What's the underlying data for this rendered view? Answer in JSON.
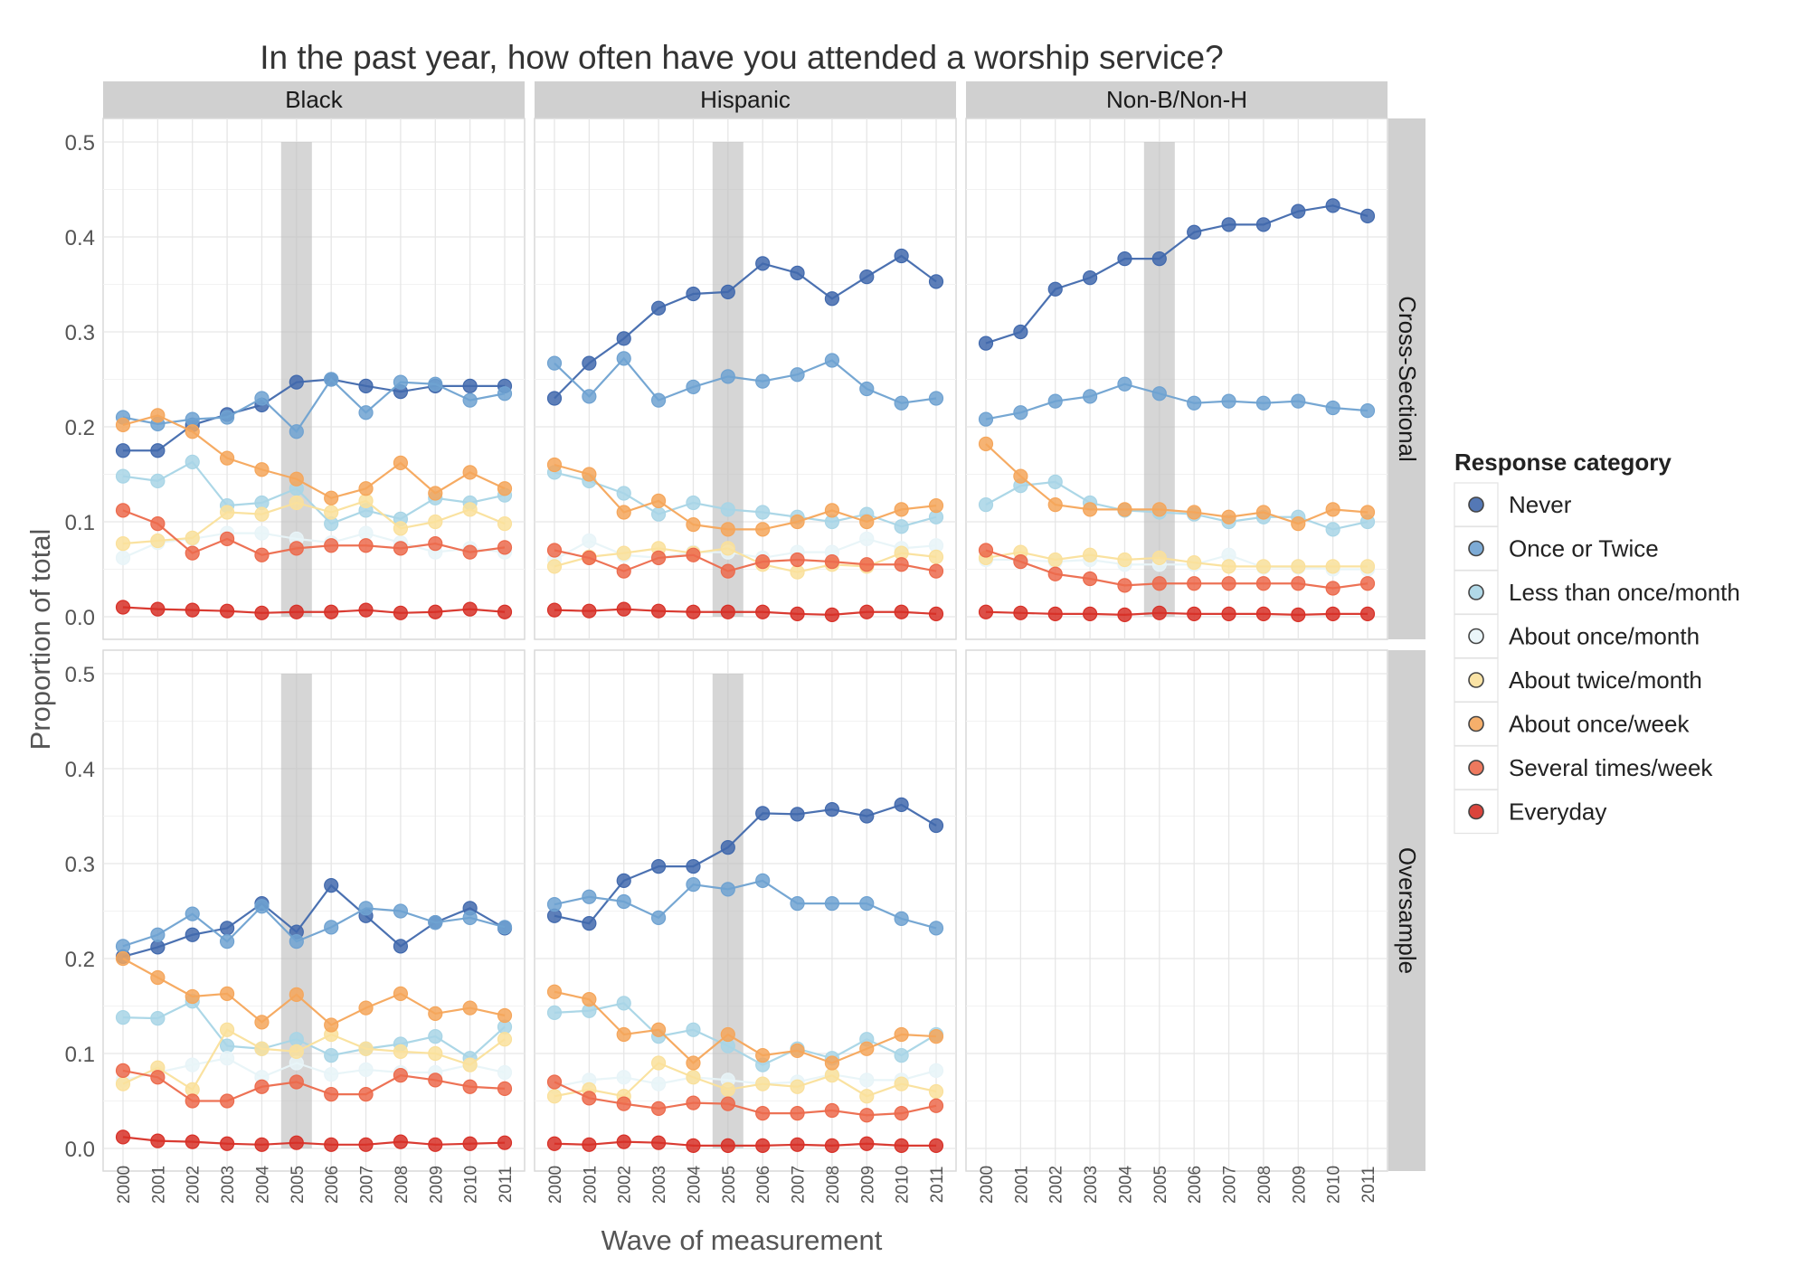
{
  "chart_data": {
    "type": "line",
    "title": "In the past year, how often have you attended a worship service?",
    "xlabel": "Wave of measurement",
    "ylabel": "Proportion of total",
    "ylim": [
      0,
      0.5
    ],
    "yticks": [
      "0.0",
      "0.1",
      "0.2",
      "0.3",
      "0.4",
      "0.5"
    ],
    "x": [
      "2000",
      "2001",
      "2002",
      "2003",
      "2004",
      "2005",
      "2006",
      "2007",
      "2008",
      "2009",
      "2010",
      "2011"
    ],
    "highlight_x": "2005",
    "grid": true,
    "columns": [
      "Black",
      "Hispanic",
      "Non-B/Non-H"
    ],
    "rows": [
      "Cross-Sectional",
      "Oversample"
    ],
    "legend": {
      "title": "Response category",
      "placement": "right",
      "items": [
        {
          "name": "Never",
          "color": "#4169ad"
        },
        {
          "name": "Once or Twice",
          "color": "#6fa2d1"
        },
        {
          "name": "Less than once/month",
          "color": "#a8d5e6"
        },
        {
          "name": "About once/month",
          "color": "#e8f4f8"
        },
        {
          "name": "About twice/month",
          "color": "#fae09b"
        },
        {
          "name": "About once/week",
          "color": "#f5a65b"
        },
        {
          "name": "Several times/week",
          "color": "#ec6a4c"
        },
        {
          "name": "Everyday",
          "color": "#d73027"
        }
      ]
    },
    "panels": [
      {
        "column": "Black",
        "row": "Cross-Sectional",
        "series": [
          {
            "name": "Never",
            "values": [
              0.175,
              0.175,
              0.202,
              0.213,
              0.223,
              0.247,
              0.25,
              0.243,
              0.237,
              0.243,
              0.243,
              0.243
            ]
          },
          {
            "name": "Once or Twice",
            "values": [
              0.21,
              0.203,
              0.208,
              0.21,
              0.23,
              0.195,
              0.25,
              0.215,
              0.247,
              0.245,
              0.228,
              0.235
            ]
          },
          {
            "name": "Less than once/month",
            "values": [
              0.148,
              0.143,
              0.163,
              0.117,
              0.12,
              0.135,
              0.098,
              0.112,
              0.103,
              0.125,
              0.12,
              0.128
            ]
          },
          {
            "name": "About once/month",
            "values": [
              0.062,
              0.078,
              0.082,
              0.088,
              0.088,
              0.082,
              0.078,
              0.088,
              0.078,
              0.068,
              0.072,
              0.068
            ]
          },
          {
            "name": "About twice/month",
            "values": [
              0.077,
              0.08,
              0.083,
              0.11,
              0.108,
              0.12,
              0.11,
              0.122,
              0.093,
              0.1,
              0.113,
              0.098
            ]
          },
          {
            "name": "About once/week",
            "values": [
              0.202,
              0.212,
              0.195,
              0.167,
              0.155,
              0.145,
              0.125,
              0.135,
              0.162,
              0.13,
              0.152,
              0.135
            ]
          },
          {
            "name": "Several times/week",
            "values": [
              0.112,
              0.098,
              0.067,
              0.082,
              0.065,
              0.072,
              0.075,
              0.075,
              0.072,
              0.077,
              0.068,
              0.073
            ]
          },
          {
            "name": "Everyday",
            "values": [
              0.01,
              0.008,
              0.007,
              0.006,
              0.004,
              0.005,
              0.005,
              0.007,
              0.004,
              0.005,
              0.008,
              0.005
            ]
          }
        ]
      },
      {
        "column": "Hispanic",
        "row": "Cross-Sectional",
        "series": [
          {
            "name": "Never",
            "values": [
              0.23,
              0.267,
              0.293,
              0.325,
              0.34,
              0.342,
              0.372,
              0.362,
              0.335,
              0.358,
              0.38,
              0.353
            ]
          },
          {
            "name": "Once or Twice",
            "values": [
              0.267,
              0.232,
              0.272,
              0.228,
              0.242,
              0.253,
              0.248,
              0.255,
              0.27,
              0.24,
              0.225,
              0.23
            ]
          },
          {
            "name": "Less than once/month",
            "values": [
              0.152,
              0.143,
              0.13,
              0.108,
              0.12,
              0.113,
              0.11,
              0.105,
              0.1,
              0.108,
              0.095,
              0.105
            ]
          },
          {
            "name": "About once/month",
            "values": [
              0.06,
              0.08,
              0.065,
              0.062,
              0.068,
              0.068,
              0.062,
              0.068,
              0.068,
              0.082,
              0.072,
              0.075
            ]
          },
          {
            "name": "About twice/month",
            "values": [
              0.053,
              0.063,
              0.067,
              0.072,
              0.067,
              0.072,
              0.055,
              0.047,
              0.055,
              0.053,
              0.067,
              0.063
            ]
          },
          {
            "name": "About once/week",
            "values": [
              0.16,
              0.15,
              0.11,
              0.122,
              0.097,
              0.092,
              0.092,
              0.1,
              0.112,
              0.1,
              0.113,
              0.117
            ]
          },
          {
            "name": "Several times/week",
            "values": [
              0.07,
              0.062,
              0.048,
              0.062,
              0.065,
              0.048,
              0.058,
              0.06,
              0.058,
              0.055,
              0.055,
              0.048
            ]
          },
          {
            "name": "Everyday",
            "values": [
              0.007,
              0.006,
              0.008,
              0.006,
              0.005,
              0.005,
              0.005,
              0.003,
              0.002,
              0.005,
              0.005,
              0.003
            ]
          }
        ]
      },
      {
        "column": "Non-B/Non-H",
        "row": "Cross-Sectional",
        "series": [
          {
            "name": "Never",
            "values": [
              0.288,
              0.3,
              0.345,
              0.357,
              0.377,
              0.377,
              0.405,
              0.413,
              0.413,
              0.427,
              0.433,
              0.422
            ]
          },
          {
            "name": "Once or Twice",
            "values": [
              0.208,
              0.215,
              0.227,
              0.232,
              0.245,
              0.235,
              0.225,
              0.227,
              0.225,
              0.227,
              0.22,
              0.217
            ]
          },
          {
            "name": "Less than once/month",
            "values": [
              0.118,
              0.138,
              0.142,
              0.12,
              0.112,
              0.11,
              0.108,
              0.1,
              0.105,
              0.105,
              0.092,
              0.1
            ]
          },
          {
            "name": "About once/month",
            "values": [
              0.06,
              0.06,
              0.058,
              0.06,
              0.055,
              0.055,
              0.055,
              0.065,
              0.052,
              0.052,
              0.05,
              0.05
            ]
          },
          {
            "name": "About twice/month",
            "values": [
              0.062,
              0.068,
              0.06,
              0.065,
              0.06,
              0.062,
              0.057,
              0.053,
              0.053,
              0.053,
              0.053,
              0.053
            ]
          },
          {
            "name": "About once/week",
            "values": [
              0.182,
              0.148,
              0.118,
              0.113,
              0.113,
              0.113,
              0.11,
              0.105,
              0.11,
              0.098,
              0.113,
              0.11
            ]
          },
          {
            "name": "Several times/week",
            "values": [
              0.07,
              0.058,
              0.045,
              0.04,
              0.033,
              0.035,
              0.035,
              0.035,
              0.035,
              0.035,
              0.03,
              0.035
            ]
          },
          {
            "name": "Everyday",
            "values": [
              0.005,
              0.004,
              0.003,
              0.003,
              0.002,
              0.004,
              0.003,
              0.003,
              0.003,
              0.002,
              0.003,
              0.003
            ]
          }
        ]
      },
      {
        "column": "Black",
        "row": "Oversample",
        "series": [
          {
            "name": "Never",
            "values": [
              0.202,
              0.212,
              0.225,
              0.232,
              0.258,
              0.228,
              0.277,
              0.245,
              0.213,
              0.238,
              0.253,
              0.232
            ]
          },
          {
            "name": "Once or Twice",
            "values": [
              0.213,
              0.225,
              0.247,
              0.218,
              0.255,
              0.218,
              0.233,
              0.253,
              0.25,
              0.238,
              0.243,
              0.233
            ]
          },
          {
            "name": "Less than once/month",
            "values": [
              0.138,
              0.137,
              0.155,
              0.108,
              0.105,
              0.115,
              0.098,
              0.105,
              0.11,
              0.118,
              0.095,
              0.128
            ]
          },
          {
            "name": "About once/month",
            "values": [
              0.072,
              0.08,
              0.088,
              0.095,
              0.075,
              0.09,
              0.078,
              0.083,
              0.08,
              0.08,
              0.088,
              0.08
            ]
          },
          {
            "name": "About twice/month",
            "values": [
              0.068,
              0.085,
              0.062,
              0.125,
              0.105,
              0.102,
              0.12,
              0.105,
              0.102,
              0.1,
              0.088,
              0.115
            ]
          },
          {
            "name": "About once/week",
            "values": [
              0.2,
              0.18,
              0.16,
              0.163,
              0.133,
              0.162,
              0.13,
              0.148,
              0.163,
              0.142,
              0.148,
              0.14
            ]
          },
          {
            "name": "Several times/week",
            "values": [
              0.082,
              0.075,
              0.05,
              0.05,
              0.065,
              0.07,
              0.057,
              0.057,
              0.077,
              0.072,
              0.065,
              0.063
            ]
          },
          {
            "name": "Everyday",
            "values": [
              0.012,
              0.008,
              0.007,
              0.005,
              0.004,
              0.006,
              0.004,
              0.004,
              0.007,
              0.004,
              0.005,
              0.006
            ]
          }
        ]
      },
      {
        "column": "Hispanic",
        "row": "Oversample",
        "series": [
          {
            "name": "Never",
            "values": [
              0.245,
              0.237,
              0.282,
              0.297,
              0.297,
              0.317,
              0.353,
              0.352,
              0.357,
              0.35,
              0.362,
              0.34
            ]
          },
          {
            "name": "Once or Twice",
            "values": [
              0.257,
              0.265,
              0.26,
              0.243,
              0.278,
              0.273,
              0.282,
              0.258,
              0.258,
              0.258,
              0.242,
              0.232
            ]
          },
          {
            "name": "Less than once/month",
            "values": [
              0.143,
              0.145,
              0.153,
              0.118,
              0.125,
              0.108,
              0.088,
              0.105,
              0.095,
              0.115,
              0.098,
              0.12
            ]
          },
          {
            "name": "About once/month",
            "values": [
              0.065,
              0.072,
              0.075,
              0.068,
              0.075,
              0.072,
              0.068,
              0.07,
              0.078,
              0.072,
              0.072,
              0.082
            ]
          },
          {
            "name": "About twice/month",
            "values": [
              0.055,
              0.062,
              0.055,
              0.09,
              0.075,
              0.062,
              0.068,
              0.065,
              0.077,
              0.055,
              0.068,
              0.06
            ]
          },
          {
            "name": "About once/week",
            "values": [
              0.165,
              0.157,
              0.12,
              0.125,
              0.09,
              0.12,
              0.098,
              0.103,
              0.09,
              0.105,
              0.12,
              0.118
            ]
          },
          {
            "name": "Several times/week",
            "values": [
              0.07,
              0.053,
              0.047,
              0.042,
              0.048,
              0.047,
              0.037,
              0.037,
              0.04,
              0.035,
              0.037,
              0.045
            ]
          },
          {
            "name": "Everyday",
            "values": [
              0.005,
              0.004,
              0.007,
              0.006,
              0.003,
              0.003,
              0.003,
              0.004,
              0.003,
              0.005,
              0.003,
              0.003
            ]
          }
        ]
      }
    ]
  }
}
